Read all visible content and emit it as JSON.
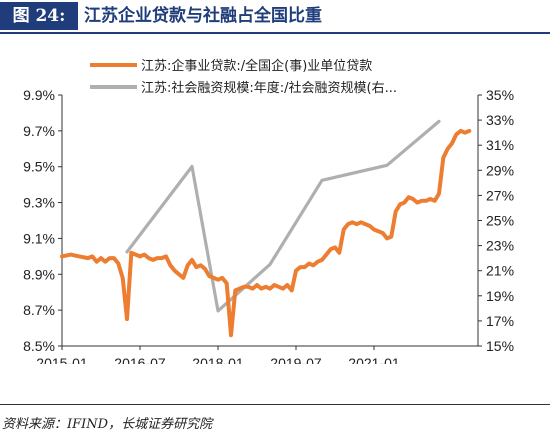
{
  "header": {
    "figure_label": "图 24:",
    "title": "江苏企业贷款与社融占全国比重"
  },
  "source": "资料来源：IFIND，长城证券研究院",
  "colors": {
    "orange": "#ED7D31",
    "gray": "#AFAFAF",
    "navy": "#1F3D7A"
  },
  "chart_data": {
    "type": "line",
    "x_tick_labels": [
      "2015-01",
      "2016-07",
      "2018-01",
      "2019-07",
      "2021-01"
    ],
    "x_tick_positions": [
      "2015-01",
      "2016-07",
      "2018-01",
      "2019-07",
      "2021-01"
    ],
    "y_left": {
      "ticks": [
        "8.5%",
        "8.7%",
        "8.9%",
        "9.1%",
        "9.3%",
        "9.5%",
        "9.7%",
        "9.9%"
      ],
      "range": [
        8.5,
        9.9
      ]
    },
    "y_right": {
      "ticks": [
        "15%",
        "17%",
        "19%",
        "21%",
        "23%",
        "25%",
        "27%",
        "29%",
        "31%",
        "33%",
        "35%"
      ],
      "range": [
        15,
        35
      ]
    },
    "legend": [
      "江苏:企事业贷款:/全国企(事)业单位贷款",
      "江苏:社会融资规模:年度:/社会融资规模(右..."
    ],
    "series": [
      {
        "name": "江苏:企事业贷款:/全国企(事)业单位贷款",
        "axis": "left",
        "points": [
          [
            "2015-01",
            9.0
          ],
          [
            "2015-03",
            9.01
          ],
          [
            "2015-05",
            9.0
          ],
          [
            "2015-07",
            8.99
          ],
          [
            "2015-08",
            9.0
          ],
          [
            "2015-09",
            8.97
          ],
          [
            "2015-10",
            8.99
          ],
          [
            "2015-11",
            8.97
          ],
          [
            "2015-12",
            8.99
          ],
          [
            "2016-01",
            8.99
          ],
          [
            "2016-02",
            8.96
          ],
          [
            "2016-03",
            8.88
          ],
          [
            "2016-04",
            8.65
          ],
          [
            "2016-05",
            9.02
          ],
          [
            "2016-06",
            9.01
          ],
          [
            "2016-07",
            9.0
          ],
          [
            "2016-08",
            9.01
          ],
          [
            "2016-09",
            8.99
          ],
          [
            "2016-10",
            8.98
          ],
          [
            "2016-11",
            8.99
          ],
          [
            "2016-12",
            8.99
          ],
          [
            "2017-01",
            9.0
          ],
          [
            "2017-02",
            8.95
          ],
          [
            "2017-03",
            8.92
          ],
          [
            "2017-04",
            8.9
          ],
          [
            "2017-05",
            8.88
          ],
          [
            "2017-06",
            8.95
          ],
          [
            "2017-07",
            8.98
          ],
          [
            "2017-08",
            8.94
          ],
          [
            "2017-09",
            8.95
          ],
          [
            "2017-10",
            8.93
          ],
          [
            "2017-11",
            8.89
          ],
          [
            "2017-12",
            8.88
          ],
          [
            "2018-01",
            8.87
          ],
          [
            "2018-02",
            8.88
          ],
          [
            "2018-03",
            8.85
          ],
          [
            "2018-04",
            8.56
          ],
          [
            "2018-05",
            8.81
          ],
          [
            "2018-06",
            8.82
          ],
          [
            "2018-07",
            8.83
          ],
          [
            "2018-08",
            8.83
          ],
          [
            "2018-09",
            8.82
          ],
          [
            "2018-10",
            8.84
          ],
          [
            "2018-11",
            8.82
          ],
          [
            "2018-12",
            8.83
          ],
          [
            "2019-01",
            8.82
          ],
          [
            "2019-02",
            8.84
          ],
          [
            "2019-03",
            8.83
          ],
          [
            "2019-04",
            8.82
          ],
          [
            "2019-05",
            8.84
          ],
          [
            "2019-06",
            8.81
          ],
          [
            "2019-07",
            8.92
          ],
          [
            "2019-08",
            8.94
          ],
          [
            "2019-09",
            8.94
          ],
          [
            "2019-10",
            8.96
          ],
          [
            "2019-11",
            8.95
          ],
          [
            "2019-12",
            8.97
          ],
          [
            "2020-01",
            8.98
          ],
          [
            "2020-02",
            9.01
          ],
          [
            "2020-03",
            9.04
          ],
          [
            "2020-04",
            9.05
          ],
          [
            "2020-05",
            9.02
          ],
          [
            "2020-06",
            9.15
          ],
          [
            "2020-07",
            9.18
          ],
          [
            "2020-08",
            9.19
          ],
          [
            "2020-09",
            9.18
          ],
          [
            "2020-10",
            9.19
          ],
          [
            "2020-11",
            9.18
          ],
          [
            "2020-12",
            9.17
          ],
          [
            "2021-01",
            9.15
          ],
          [
            "2021-02",
            9.14
          ],
          [
            "2021-03",
            9.13
          ],
          [
            "2021-04",
            9.1
          ],
          [
            "2021-05",
            9.11
          ],
          [
            "2021-06",
            9.25
          ],
          [
            "2021-07",
            9.29
          ],
          [
            "2021-08",
            9.3
          ],
          [
            "2021-09",
            9.33
          ],
          [
            "2021-10",
            9.32
          ],
          [
            "2021-11",
            9.3
          ],
          [
            "2021-12",
            9.31
          ],
          [
            "2022-01",
            9.31
          ],
          [
            "2022-02",
            9.32
          ],
          [
            "2022-03",
            9.31
          ],
          [
            "2022-04",
            9.35
          ],
          [
            "2022-05",
            9.55
          ],
          [
            "2022-06",
            9.6
          ],
          [
            "2022-07",
            9.63
          ],
          [
            "2022-08",
            9.68
          ],
          [
            "2022-09",
            9.7
          ],
          [
            "2022-10",
            9.69
          ],
          [
            "2022-11",
            9.7
          ]
        ]
      },
      {
        "name": "江苏:社会融资规模:年度:/社会融资规模(右...",
        "axis": "right",
        "points": [
          [
            "2016-04",
            22.5
          ],
          [
            "2017-07",
            29.3
          ],
          [
            "2018-01",
            17.8
          ],
          [
            "2019-01",
            21.5
          ],
          [
            "2020-01",
            28.2
          ],
          [
            "2021-04",
            29.4
          ],
          [
            "2022-04",
            32.9
          ]
        ]
      }
    ]
  }
}
